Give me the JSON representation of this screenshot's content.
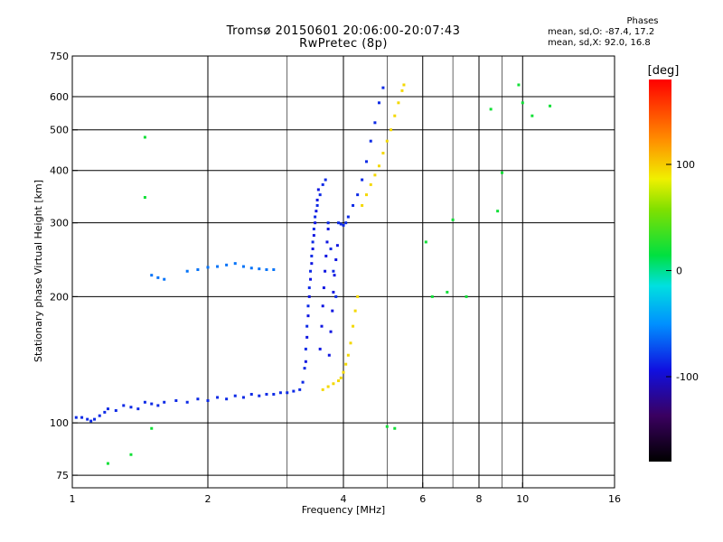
{
  "header": {
    "title_line1": "Tromsø 20150601 20:06:00-20:07:43",
    "title_line2": "RwPretec (8p)"
  },
  "phase_info": {
    "heading": "Phases",
    "line_o": "mean, sd,O: -87.4, 17.2",
    "line_x": "mean, sd,X:  92.0, 16.8"
  },
  "colorbar": {
    "unit_label": "[deg]",
    "ticks": [
      {
        "value": 100,
        "label": "100"
      },
      {
        "value": 0,
        "label": "0"
      },
      {
        "value": -100,
        "label": "-100"
      }
    ],
    "range": [
      -180,
      180
    ]
  },
  "colors": {
    "o_mode": "#2a35e0",
    "o_mode_alt": "#2590e0",
    "x_mode": "#f2e21a"
  },
  "chart_data": {
    "type": "scatter",
    "title": "Tromsø 20150601 20:06:00-20:07:43",
    "subtitle": "RwPretec (8p)",
    "xlabel": "Frequency [MHz]",
    "ylabel": "Stationary phase Virtual Height [km]",
    "x_scale": "log",
    "y_scale": "log",
    "xlim": [
      1,
      16
    ],
    "ylim": [
      70,
      750
    ],
    "x_ticks": [
      {
        "value": 1,
        "label": "1"
      },
      {
        "value": 2,
        "label": "2"
      },
      {
        "value": 4,
        "label": "4"
      },
      {
        "value": 6,
        "label": "6"
      },
      {
        "value": 8,
        "label": "8"
      },
      {
        "value": 10,
        "label": "10"
      },
      {
        "value": 16,
        "label": "16"
      }
    ],
    "x_minor_grid": [
      3,
      5,
      7,
      9
    ],
    "y_ticks": [
      {
        "value": 75,
        "label": "75"
      },
      {
        "value": 100,
        "label": "100"
      },
      {
        "value": 200,
        "label": "200"
      },
      {
        "value": 300,
        "label": "300"
      },
      {
        "value": 400,
        "label": "400"
      },
      {
        "value": 500,
        "label": "500"
      },
      {
        "value": 600,
        "label": "600"
      },
      {
        "value": 750,
        "label": "750"
      }
    ],
    "grid": true,
    "color_scale_label": "[deg]",
    "series": [
      {
        "mode": "O-mode E/F trace",
        "phase_deg": -85,
        "points": [
          [
            1.02,
            103
          ],
          [
            1.05,
            103
          ],
          [
            1.08,
            102
          ],
          [
            1.1,
            101
          ],
          [
            1.12,
            102
          ],
          [
            1.15,
            104
          ],
          [
            1.18,
            106
          ],
          [
            1.2,
            108
          ],
          [
            1.25,
            107
          ],
          [
            1.3,
            110
          ],
          [
            1.35,
            109
          ],
          [
            1.4,
            108
          ],
          [
            1.45,
            112
          ],
          [
            1.5,
            111
          ],
          [
            1.55,
            110
          ],
          [
            1.6,
            112
          ],
          [
            1.7,
            113
          ],
          [
            1.8,
            112
          ],
          [
            1.9,
            114
          ],
          [
            2.0,
            113
          ],
          [
            2.1,
            115
          ],
          [
            2.2,
            114
          ],
          [
            2.3,
            116
          ],
          [
            2.4,
            115
          ],
          [
            2.5,
            117
          ],
          [
            2.6,
            116
          ],
          [
            2.7,
            117
          ],
          [
            2.8,
            117
          ],
          [
            2.9,
            118
          ],
          [
            3.0,
            118
          ],
          [
            3.1,
            119
          ],
          [
            3.2,
            120
          ],
          [
            3.25,
            125
          ],
          [
            3.28,
            135
          ],
          [
            3.3,
            150
          ],
          [
            3.32,
            170
          ],
          [
            3.34,
            190
          ],
          [
            3.36,
            210
          ],
          [
            3.38,
            230
          ],
          [
            3.4,
            250
          ],
          [
            3.42,
            270
          ],
          [
            3.44,
            290
          ],
          [
            3.46,
            310
          ],
          [
            3.5,
            330
          ],
          [
            3.55,
            350
          ],
          [
            3.6,
            370
          ],
          [
            3.65,
            380
          ],
          [
            3.7,
            300
          ],
          [
            3.75,
            260
          ],
          [
            3.8,
            230
          ],
          [
            3.85,
            200
          ],
          [
            3.9,
            300
          ],
          [
            3.95,
            298
          ],
          [
            4.0,
            296
          ],
          [
            4.05,
            300
          ],
          [
            4.1,
            310
          ],
          [
            4.2,
            330
          ],
          [
            4.3,
            350
          ],
          [
            4.4,
            380
          ],
          [
            4.5,
            420
          ],
          [
            4.6,
            470
          ],
          [
            4.7,
            520
          ],
          [
            4.8,
            580
          ],
          [
            4.9,
            630
          ]
        ]
      },
      {
        "mode": "O-mode spread F band",
        "phase_deg": -92,
        "points": [
          [
            3.3,
            140
          ],
          [
            3.32,
            160
          ],
          [
            3.34,
            180
          ],
          [
            3.36,
            200
          ],
          [
            3.38,
            220
          ],
          [
            3.4,
            240
          ],
          [
            3.42,
            260
          ],
          [
            3.44,
            280
          ],
          [
            3.46,
            300
          ],
          [
            3.48,
            320
          ],
          [
            3.5,
            340
          ],
          [
            3.52,
            360
          ],
          [
            3.55,
            150
          ],
          [
            3.58,
            170
          ],
          [
            3.6,
            190
          ],
          [
            3.62,
            210
          ],
          [
            3.64,
            230
          ],
          [
            3.66,
            250
          ],
          [
            3.68,
            270
          ],
          [
            3.7,
            290
          ],
          [
            3.72,
            145
          ],
          [
            3.75,
            165
          ],
          [
            3.78,
            185
          ],
          [
            3.8,
            205
          ],
          [
            3.82,
            225
          ],
          [
            3.85,
            245
          ],
          [
            3.88,
            265
          ]
        ]
      },
      {
        "mode": "Sporadic E layer (O)",
        "phase_deg": -60,
        "points": [
          [
            1.8,
            230
          ],
          [
            1.9,
            232
          ],
          [
            2.0,
            235
          ],
          [
            2.1,
            236
          ],
          [
            2.2,
            238
          ],
          [
            2.3,
            240
          ],
          [
            2.4,
            236
          ],
          [
            2.5,
            234
          ],
          [
            2.6,
            233
          ],
          [
            2.7,
            232
          ],
          [
            2.8,
            232
          ],
          [
            1.5,
            225
          ],
          [
            1.55,
            222
          ],
          [
            1.6,
            220
          ]
        ]
      },
      {
        "mode": "X-mode trace",
        "phase_deg": 95,
        "points": [
          [
            3.6,
            120
          ],
          [
            3.7,
            122
          ],
          [
            3.8,
            124
          ],
          [
            3.9,
            126
          ],
          [
            3.95,
            128
          ],
          [
            4.0,
            132
          ],
          [
            4.05,
            138
          ],
          [
            4.1,
            145
          ],
          [
            4.15,
            155
          ],
          [
            4.2,
            170
          ],
          [
            4.25,
            185
          ],
          [
            4.3,
            200
          ],
          [
            4.4,
            330
          ],
          [
            4.5,
            350
          ],
          [
            4.6,
            370
          ],
          [
            4.7,
            390
          ],
          [
            4.8,
            410
          ],
          [
            4.9,
            440
          ],
          [
            5.0,
            470
          ],
          [
            5.1,
            500
          ],
          [
            5.2,
            540
          ],
          [
            5.3,
            580
          ],
          [
            5.4,
            620
          ],
          [
            5.45,
            640
          ]
        ]
      },
      {
        "mode": "Scattered echoes",
        "phase_deg": 20,
        "points": [
          [
            1.2,
            80
          ],
          [
            1.35,
            84
          ],
          [
            1.5,
            97
          ],
          [
            1.45,
            480
          ],
          [
            1.45,
            345
          ],
          [
            5.0,
            98
          ],
          [
            5.2,
            97
          ],
          [
            6.1,
            270
          ],
          [
            6.3,
            200
          ],
          [
            6.8,
            205
          ],
          [
            7.0,
            305
          ],
          [
            8.5,
            560
          ],
          [
            9.0,
            395
          ],
          [
            9.8,
            640
          ],
          [
            10.0,
            580
          ],
          [
            10.5,
            540
          ],
          [
            11.5,
            570
          ],
          [
            7.5,
            200
          ],
          [
            8.8,
            320
          ]
        ]
      }
    ]
  }
}
